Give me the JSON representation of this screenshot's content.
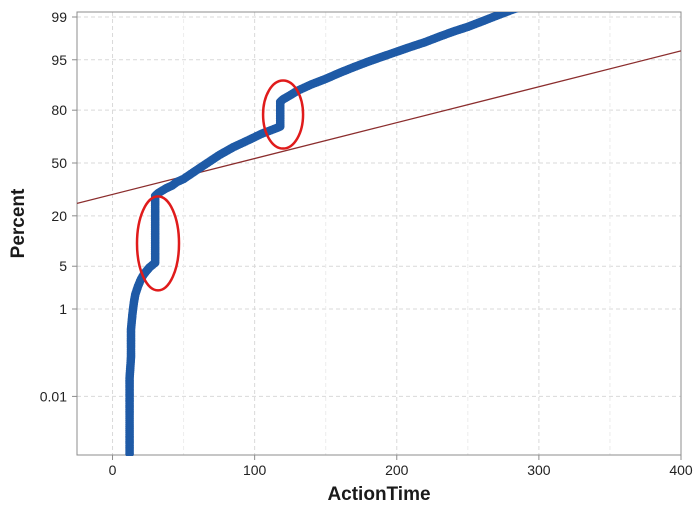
{
  "colors": {
    "series": "#1f5aa6",
    "fit_line": "#8b2d2d",
    "annotation": "#e01b1b",
    "grid": "#d9d9d9",
    "frame": "#8c8c8c"
  },
  "chart_data": {
    "type": "scatter",
    "title": "",
    "xlabel": "ActionTime",
    "ylabel": "Percent",
    "y_scale": "normal-probability",
    "xlim": [
      -25,
      400
    ],
    "x_ticks": [
      0,
      100,
      200,
      300,
      400
    ],
    "x_tick_labels": [
      "0",
      "100",
      "200",
      "300",
      "400"
    ],
    "y_ticks": [
      0.01,
      1,
      5,
      20,
      50,
      80,
      95,
      99
    ],
    "y_tick_labels": [
      "0.01",
      "1",
      "5",
      "20",
      "50",
      "80",
      "95",
      "99"
    ],
    "grid": true,
    "series": [
      {
        "x": [
          12,
          12,
          12,
          12,
          12,
          12,
          13,
          13,
          13,
          14,
          15,
          16,
          18,
          20,
          22,
          24,
          26,
          28,
          30,
          30,
          30,
          30,
          30,
          30,
          30,
          32,
          35,
          38,
          42,
          45,
          50,
          55,
          60,
          65,
          70,
          75,
          80,
          85,
          90,
          95,
          100,
          105,
          110,
          115,
          118,
          118,
          118,
          118,
          120,
          125,
          130,
          140,
          150,
          160,
          170,
          180,
          190,
          200,
          210,
          220,
          230,
          240,
          250,
          260,
          270,
          280,
          290,
          300,
          310,
          320,
          330,
          340,
          350,
          360,
          370,
          380,
          390,
          400
        ],
        "y": [
          8e-05,
          0.0003,
          0.001,
          0.003,
          0.01,
          0.03,
          0.1,
          0.2,
          0.4,
          0.8,
          1.3,
          1.8,
          2.5,
          3.2,
          3.8,
          4.3,
          4.8,
          5.2,
          5.6,
          8,
          12,
          18,
          24,
          28,
          30,
          31.5,
          33,
          34.5,
          36,
          38,
          40,
          43,
          46,
          49,
          52,
          55,
          57.5,
          60,
          62,
          64,
          66,
          68,
          69.5,
          71,
          72,
          76,
          80,
          83.5,
          84.5,
          86,
          87.5,
          89.5,
          91,
          92.5,
          93.7,
          94.7,
          95.5,
          96.2,
          96.8,
          97.3,
          97.8,
          98.2,
          98.5,
          98.8,
          99.05,
          99.25,
          99.4,
          99.52,
          99.62,
          99.7,
          99.76,
          99.81,
          99.85,
          99.88,
          99.91,
          99.93,
          99.95,
          99.96
        ]
      }
    ],
    "fit_line": {
      "x": [
        -25,
        400
      ],
      "y": [
        26,
        96.3
      ]
    },
    "annotations": [
      {
        "shape": "ellipse",
        "center_x": 32,
        "center_y": 10,
        "note": "vertical jump near x≈30"
      },
      {
        "shape": "ellipse",
        "center_x": 120,
        "center_y": 78,
        "note": "vertical jump near x≈118"
      }
    ]
  }
}
